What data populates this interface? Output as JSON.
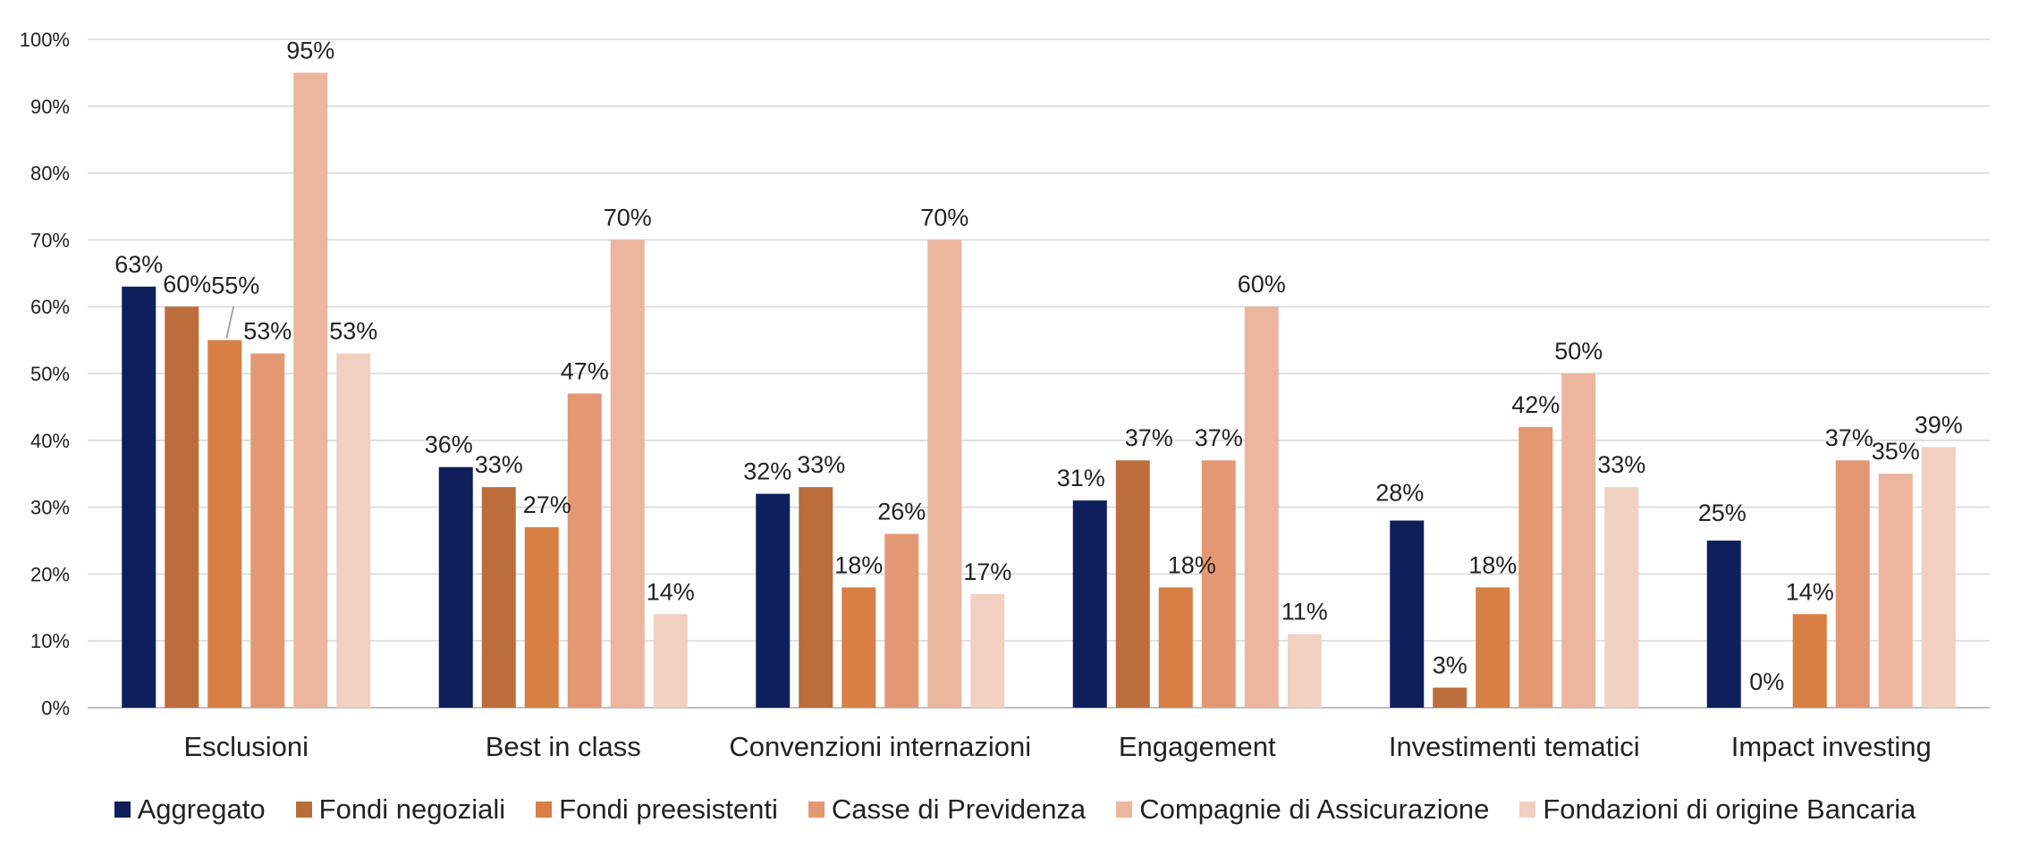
{
  "chart_data": {
    "type": "bar",
    "title": "",
    "xlabel": "",
    "ylabel": "",
    "ylim": [
      0,
      100
    ],
    "yticks": [
      0,
      10,
      20,
      30,
      40,
      50,
      60,
      70,
      80,
      90,
      100
    ],
    "ytick_labels": [
      "0%",
      "10%",
      "20%",
      "30%",
      "40%",
      "50%",
      "60%",
      "70%",
      "80%",
      "90%",
      "100%"
    ],
    "grid": true,
    "legend_position": "bottom",
    "categories": [
      "Esclusioni",
      "Best in class",
      "Convenzioni internazioni",
      "Engagement",
      "Investimenti tematici",
      "Impact investing"
    ],
    "series": [
      {
        "name": "Aggregato",
        "color": "#0f1f5c",
        "values": [
          63,
          36,
          32,
          31,
          28,
          25
        ],
        "labels": [
          "63%",
          "36%",
          "32%",
          "31%",
          "28%",
          "25%"
        ]
      },
      {
        "name": "Fondi negoziali",
        "color": "#bb6e3b",
        "values": [
          60,
          33,
          33,
          37,
          3,
          0
        ],
        "labels": [
          "60%",
          "33%",
          "33%",
          "37%",
          "3%",
          "0%"
        ]
      },
      {
        "name": "Fondi preesistenti",
        "color": "#d77f44",
        "values": [
          55,
          27,
          18,
          18,
          18,
          14
        ],
        "labels": [
          "55%",
          "27%",
          "18%",
          "18%",
          "18%",
          "14%"
        ]
      },
      {
        "name": "Casse di Previdenza",
        "color": "#e39873",
        "values": [
          53,
          47,
          26,
          37,
          42,
          37
        ],
        "labels": [
          "53%",
          "47%",
          "26%",
          "37%",
          "42%",
          "37%"
        ]
      },
      {
        "name": "Compagnie di Assicurazione",
        "color": "#ebb59e",
        "values": [
          95,
          70,
          70,
          60,
          50,
          35
        ],
        "labels": [
          "95%",
          "70%",
          "70%",
          "60%",
          "50%",
          "35%"
        ]
      },
      {
        "name": "Fondazioni di origine Bancaria",
        "color": "#f1d0c2",
        "values": [
          53,
          14,
          17,
          11,
          33,
          39
        ],
        "labels": [
          "53%",
          "14%",
          "17%",
          "11%",
          "33%",
          "39%"
        ]
      }
    ]
  }
}
